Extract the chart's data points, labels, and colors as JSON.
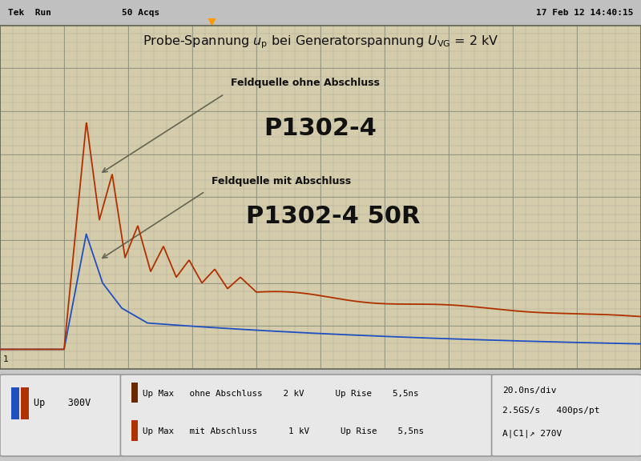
{
  "bg_color": "#c8c8c8",
  "plot_bg_color": "#d4ccaa",
  "grid_major_color": "#888877",
  "grid_minor_color": "#aaa898",
  "top_bar_bg": "#c0c0c0",
  "border_color": "#888888",
  "orange_color": "#b03000",
  "blue_color": "#2050c0",
  "annotation_line_color": "#666655",
  "text_dark": "#111111",
  "text_white_plot": "#111111",
  "footer_box_bg": "#e8e8e8",
  "footer_box_border": "#999999",
  "n_points": 2000,
  "label1_small": "Feldquelle ohne Abschluss",
  "label1_big": "P1302-4",
  "label2_small": "Feldquelle mit Abschluss",
  "label2_big": "P1302-4 50R",
  "tek_left": "Tek  Run",
  "tek_mid": "50 Acqs",
  "tek_right": "17 Feb 12 14:40:15",
  "title_plot": "Probe-Spannung $u_\\mathrm{p}$ bei Generatorspannung $U_\\mathrm{VG}$ = 2 kV",
  "footer_box1": "Up    300V",
  "footer_box2_l1": "Up Max   ohne Abschluss    2 kV      Up Rise    5,5ns",
  "footer_box2_l2": "Up Max   mit Abschluss      1 kV      Up Rise    5,5ns",
  "footer_box3_l1": "20.0ns/div",
  "footer_box3_l2": "2.5GS/s   400ps/pt",
  "footer_box3_l3": "A|C1|↗ 270V"
}
